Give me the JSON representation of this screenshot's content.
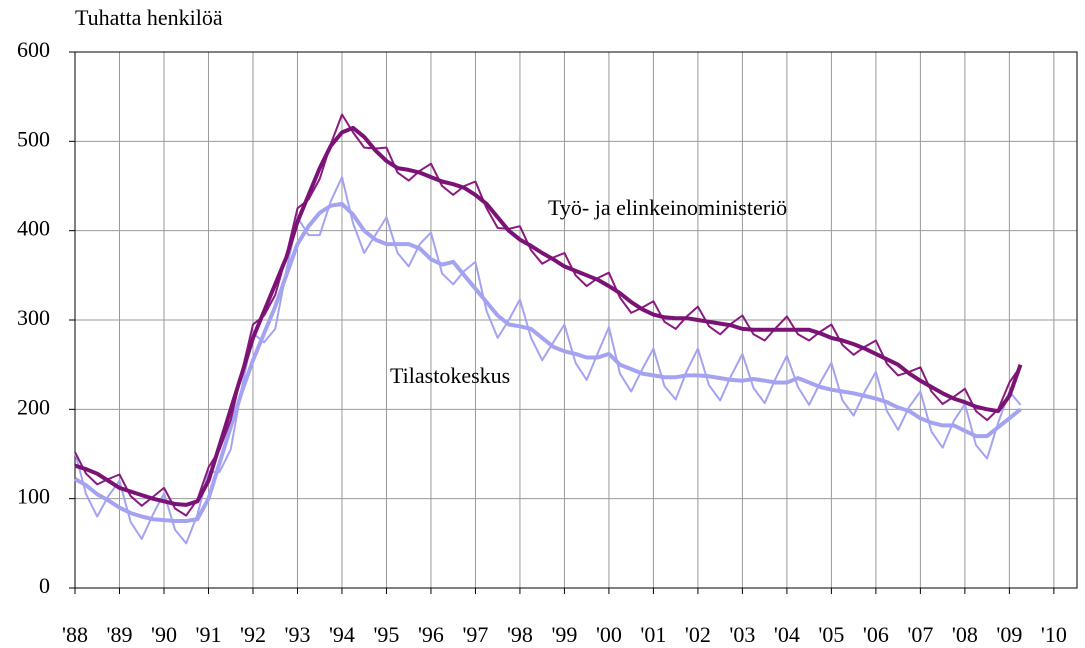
{
  "chart_data": {
    "type": "line",
    "ylabel": "Tuhatta henkilöä",
    "annotations": [
      "Työ- ja elinkeinoministeriö",
      "Tilastokeskus"
    ],
    "x": [
      1988,
      1988.25,
      1988.5,
      1988.75,
      1989,
      1989.25,
      1989.5,
      1989.75,
      1990,
      1990.25,
      1990.5,
      1990.75,
      1991,
      1991.25,
      1991.5,
      1991.75,
      1992,
      1992.25,
      1992.5,
      1992.75,
      1993,
      1993.25,
      1993.5,
      1993.75,
      1994,
      1994.25,
      1994.5,
      1994.75,
      1995,
      1995.25,
      1995.5,
      1995.75,
      1996,
      1996.25,
      1996.5,
      1996.75,
      1997,
      1997.25,
      1997.5,
      1997.75,
      1998,
      1998.25,
      1998.5,
      1998.75,
      1999,
      1999.25,
      1999.5,
      1999.75,
      2000,
      2000.25,
      2000.5,
      2000.75,
      2001,
      2001.25,
      2001.5,
      2001.75,
      2002,
      2002.25,
      2002.5,
      2002.75,
      2003,
      2003.25,
      2003.5,
      2003.75,
      2004,
      2004.25,
      2004.5,
      2004.75,
      2005,
      2005.25,
      2005.5,
      2005.75,
      2006,
      2006.25,
      2006.5,
      2006.75,
      2007,
      2007.25,
      2007.5,
      2007.75,
      2008,
      2008.25,
      2008.5,
      2008.75,
      2009,
      2009.25
    ],
    "series": [
      {
        "color": "#a3a3f2",
        "width": 2,
        "values": [
          152,
          105,
          80,
          103,
          120,
          74,
          55,
          82,
          106,
          65,
          50,
          82,
          130,
          130,
          155,
          225,
          285,
          275,
          290,
          355,
          415,
          395,
          395,
          433,
          460,
          408,
          375,
          395,
          415,
          375,
          360,
          385,
          398,
          352,
          340,
          355,
          365,
          310,
          280,
          300,
          323,
          280,
          255,
          275,
          295,
          252,
          233,
          263,
          292,
          240,
          220,
          245,
          268,
          226,
          211,
          243,
          268,
          227,
          210,
          238,
          262,
          224,
          207,
          235,
          260,
          225,
          205,
          230,
          252,
          210,
          193,
          220,
          242,
          198,
          177,
          203,
          220,
          175,
          157,
          187,
          206,
          160,
          145,
          185,
          220,
          205
        ]
      },
      {
        "color": "#a3a3f2",
        "width": 4,
        "values": [
          122,
          115,
          105,
          98,
          90,
          84,
          80,
          77,
          76,
          75,
          75,
          77,
          100,
          140,
          180,
          220,
          255,
          285,
          315,
          350,
          385,
          405,
          420,
          428,
          430,
          418,
          400,
          390,
          385,
          385,
          385,
          380,
          368,
          362,
          365,
          350,
          335,
          320,
          305,
          295,
          293,
          290,
          280,
          270,
          265,
          262,
          258,
          258,
          262,
          250,
          245,
          240,
          238,
          236,
          236,
          238,
          238,
          237,
          235,
          233,
          232,
          234,
          232,
          230,
          230,
          235,
          230,
          225,
          222,
          220,
          218,
          215,
          212,
          208,
          202,
          198,
          190,
          185,
          182,
          182,
          176,
          170,
          170,
          180,
          190,
          200
        ]
      },
      {
        "color": "#8a1a80",
        "width": 2,
        "values": [
          152,
          128,
          116,
          122,
          127,
          103,
          92,
          102,
          112,
          89,
          81,
          99,
          135,
          155,
          188,
          242,
          295,
          305,
          328,
          372,
          425,
          435,
          458,
          497,
          530,
          510,
          493,
          492,
          493,
          465,
          456,
          467,
          475,
          450,
          440,
          450,
          455,
          425,
          403,
          402,
          405,
          378,
          363,
          370,
          375,
          350,
          338,
          347,
          353,
          325,
          308,
          314,
          321,
          298,
          290,
          304,
          315,
          293,
          284,
          296,
          305,
          284,
          277,
          291,
          304,
          284,
          277,
          287,
          295,
          272,
          261,
          270,
          277,
          251,
          238,
          242,
          247,
          220,
          206,
          214,
          223,
          198,
          188,
          200,
          230,
          248
        ]
      },
      {
        "color": "#7b1275",
        "width": 4,
        "values": [
          137,
          133,
          128,
          120,
          112,
          108,
          104,
          100,
          97,
          94,
          93,
          97,
          120,
          160,
          200,
          240,
          280,
          310,
          340,
          370,
          410,
          440,
          470,
          495,
          510,
          515,
          505,
          490,
          478,
          470,
          468,
          465,
          460,
          455,
          452,
          448,
          440,
          430,
          415,
          400,
          390,
          383,
          375,
          368,
          360,
          355,
          350,
          345,
          338,
          330,
          320,
          312,
          306,
          303,
          302,
          302,
          300,
          298,
          296,
          294,
          290,
          289,
          289,
          289,
          289,
          289,
          289,
          285,
          280,
          277,
          273,
          268,
          262,
          256,
          250,
          240,
          232,
          225,
          218,
          212,
          208,
          203,
          200,
          198,
          215,
          250
        ]
      }
    ],
    "xlim": [
      1988,
      2010.52
    ],
    "xticks": [
      {
        "value": 1988,
        "label": "'88"
      },
      {
        "value": 1989,
        "label": "'89"
      },
      {
        "value": 1990,
        "label": "'90"
      },
      {
        "value": 1991,
        "label": "'91"
      },
      {
        "value": 1992,
        "label": "'92"
      },
      {
        "value": 1993,
        "label": "'93"
      },
      {
        "value": 1994,
        "label": "'94"
      },
      {
        "value": 1995,
        "label": "'95"
      },
      {
        "value": 1996,
        "label": "'96"
      },
      {
        "value": 1997,
        "label": "'97"
      },
      {
        "value": 1998,
        "label": "'98"
      },
      {
        "value": 1999,
        "label": "'99"
      },
      {
        "value": 2000,
        "label": "'00"
      },
      {
        "value": 2001,
        "label": "'01"
      },
      {
        "value": 2002,
        "label": "'02"
      },
      {
        "value": 2003,
        "label": "'03"
      },
      {
        "value": 2004,
        "label": "'04"
      },
      {
        "value": 2005,
        "label": "'05"
      },
      {
        "value": 2006,
        "label": "'06"
      },
      {
        "value": 2007,
        "label": "'07"
      },
      {
        "value": 2008,
        "label": "'08"
      },
      {
        "value": 2009,
        "label": "'09"
      },
      {
        "value": 2010,
        "label": "'10"
      }
    ],
    "ylim": [
      0,
      600
    ],
    "yticks": [
      0,
      100,
      200,
      300,
      400,
      500,
      600
    ],
    "grid": true
  }
}
